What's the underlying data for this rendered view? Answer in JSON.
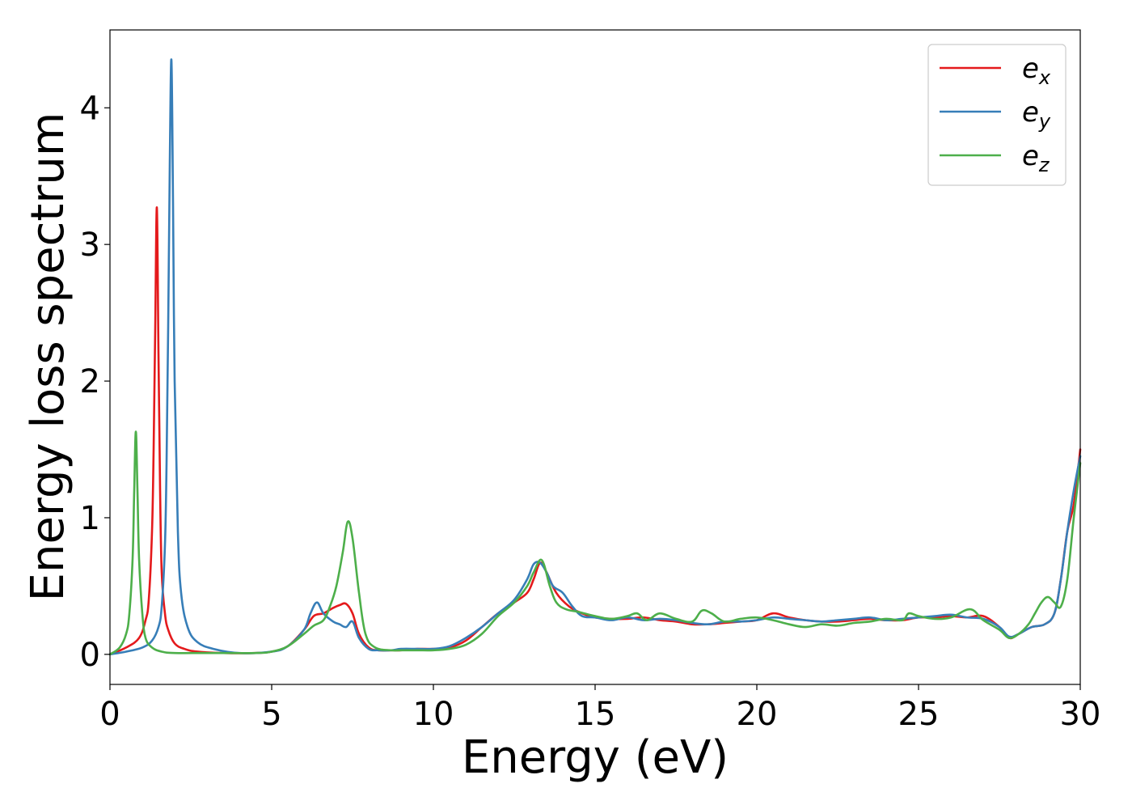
{
  "chart_data": {
    "type": "line",
    "xlabel": "Energy (eV)",
    "ylabel": "Energy loss spectrum",
    "xlim": [
      0,
      30
    ],
    "ylim": [
      -0.22,
      4.57
    ],
    "xticks": [
      0,
      5,
      10,
      15,
      20,
      25,
      30
    ],
    "yticks": [
      0,
      1,
      2,
      3,
      4
    ],
    "grid": false,
    "legend": "top-right",
    "series": [
      {
        "name": "e_x",
        "label_base": "e",
        "label_sub": "x",
        "color": "#e41a1c",
        "x": [
          0,
          0.5,
          0.9,
          1.1,
          1.2,
          1.3,
          1.35,
          1.4,
          1.45,
          1.5,
          1.55,
          1.6,
          1.7,
          1.8,
          2.0,
          2.3,
          2.7,
          3.5,
          4.5,
          5.0,
          5.5,
          6.0,
          6.3,
          6.6,
          6.9,
          7.1,
          7.3,
          7.5,
          7.7,
          8.0,
          8.3,
          8.7,
          9.0,
          9.5,
          10.0,
          10.5,
          11.0,
          11.5,
          12.0,
          12.5,
          12.9,
          13.1,
          13.3,
          13.5,
          13.8,
          14.2,
          14.6,
          15.0,
          15.5,
          16.0,
          16.5,
          17.0,
          17.5,
          18.0,
          18.5,
          19.0,
          19.5,
          20.0,
          20.5,
          21.0,
          21.5,
          22.0,
          22.5,
          23.0,
          23.5,
          24.0,
          24.5,
          25.0,
          25.5,
          26.0,
          26.5,
          27.0,
          27.5,
          27.8,
          28.1,
          28.5,
          28.9,
          29.2,
          29.4,
          29.6,
          29.8,
          30.0
        ],
        "values": [
          0.0,
          0.05,
          0.12,
          0.25,
          0.4,
          0.9,
          1.5,
          2.4,
          3.27,
          2.2,
          1.2,
          0.6,
          0.3,
          0.18,
          0.08,
          0.04,
          0.02,
          0.01,
          0.01,
          0.02,
          0.06,
          0.18,
          0.28,
          0.3,
          0.34,
          0.36,
          0.37,
          0.3,
          0.15,
          0.05,
          0.03,
          0.03,
          0.03,
          0.04,
          0.04,
          0.05,
          0.1,
          0.2,
          0.3,
          0.38,
          0.45,
          0.55,
          0.67,
          0.6,
          0.45,
          0.35,
          0.3,
          0.27,
          0.26,
          0.26,
          0.27,
          0.25,
          0.24,
          0.22,
          0.22,
          0.23,
          0.24,
          0.25,
          0.3,
          0.27,
          0.25,
          0.24,
          0.24,
          0.25,
          0.26,
          0.25,
          0.25,
          0.27,
          0.27,
          0.28,
          0.27,
          0.28,
          0.2,
          0.12,
          0.15,
          0.2,
          0.22,
          0.3,
          0.55,
          0.9,
          1.1,
          1.5
        ]
      },
      {
        "name": "e_y",
        "label_base": "e",
        "label_sub": "y",
        "color": "#377eb8",
        "x": [
          0,
          0.5,
          1.0,
          1.3,
          1.5,
          1.6,
          1.7,
          1.75,
          1.8,
          1.85,
          1.9,
          1.95,
          2.0,
          2.1,
          2.2,
          2.4,
          2.7,
          3.2,
          4.0,
          5.0,
          5.5,
          6.0,
          6.2,
          6.4,
          6.6,
          6.9,
          7.1,
          7.3,
          7.5,
          7.7,
          8.0,
          8.3,
          8.7,
          9.0,
          9.5,
          10.0,
          10.5,
          11.0,
          11.5,
          12.0,
          12.5,
          12.9,
          13.1,
          13.3,
          13.5,
          13.7,
          14.0,
          14.3,
          14.6,
          15.0,
          15.5,
          16.0,
          16.5,
          17.0,
          17.5,
          18.0,
          18.5,
          19.0,
          19.5,
          20.0,
          20.5,
          21.0,
          21.5,
          22.0,
          22.5,
          23.0,
          23.5,
          24.0,
          24.5,
          25.0,
          25.5,
          26.0,
          26.5,
          27.0,
          27.5,
          27.8,
          28.1,
          28.5,
          28.9,
          29.2,
          29.4,
          29.6,
          29.8,
          30.0
        ],
        "values": [
          0.0,
          0.02,
          0.05,
          0.1,
          0.2,
          0.35,
          0.8,
          1.4,
          2.4,
          3.6,
          4.35,
          3.3,
          2.0,
          0.9,
          0.45,
          0.2,
          0.09,
          0.04,
          0.01,
          0.02,
          0.06,
          0.18,
          0.3,
          0.38,
          0.3,
          0.24,
          0.22,
          0.2,
          0.24,
          0.12,
          0.04,
          0.03,
          0.03,
          0.04,
          0.04,
          0.04,
          0.06,
          0.12,
          0.2,
          0.3,
          0.4,
          0.55,
          0.66,
          0.67,
          0.6,
          0.5,
          0.45,
          0.35,
          0.28,
          0.27,
          0.25,
          0.27,
          0.25,
          0.26,
          0.25,
          0.23,
          0.22,
          0.24,
          0.24,
          0.25,
          0.27,
          0.26,
          0.25,
          0.24,
          0.25,
          0.26,
          0.27,
          0.25,
          0.26,
          0.27,
          0.28,
          0.29,
          0.27,
          0.26,
          0.2,
          0.13,
          0.15,
          0.2,
          0.22,
          0.3,
          0.55,
          0.9,
          1.2,
          1.45
        ]
      },
      {
        "name": "e_z",
        "label_base": "e",
        "label_sub": "z",
        "color": "#4daf4a",
        "x": [
          0,
          0.3,
          0.5,
          0.6,
          0.7,
          0.75,
          0.8,
          0.85,
          0.9,
          1.0,
          1.1,
          1.3,
          1.6,
          2.0,
          3.0,
          4.5,
          5.0,
          5.5,
          6.0,
          6.3,
          6.6,
          6.8,
          7.0,
          7.2,
          7.35,
          7.5,
          7.7,
          7.9,
          8.2,
          8.7,
          9.0,
          9.5,
          10.0,
          10.5,
          11.0,
          11.5,
          12.0,
          12.5,
          12.9,
          13.1,
          13.35,
          13.6,
          13.8,
          14.1,
          14.5,
          15.0,
          15.5,
          16.0,
          16.3,
          16.6,
          17.0,
          17.5,
          18.0,
          18.3,
          18.6,
          19.0,
          19.5,
          20.0,
          20.5,
          21.0,
          21.5,
          22.0,
          22.5,
          23.0,
          23.5,
          24.0,
          24.5,
          24.7,
          25.0,
          25.5,
          26.0,
          26.6,
          27.0,
          27.5,
          27.8,
          28.1,
          28.4,
          28.6,
          28.8,
          29.0,
          29.2,
          29.4,
          29.6,
          29.8,
          30.0
        ],
        "values": [
          0.0,
          0.05,
          0.15,
          0.3,
          0.7,
          1.2,
          1.63,
          1.2,
          0.7,
          0.3,
          0.12,
          0.05,
          0.02,
          0.01,
          0.01,
          0.01,
          0.02,
          0.06,
          0.15,
          0.21,
          0.25,
          0.35,
          0.5,
          0.75,
          0.97,
          0.85,
          0.45,
          0.15,
          0.05,
          0.03,
          0.03,
          0.03,
          0.03,
          0.04,
          0.07,
          0.15,
          0.28,
          0.38,
          0.5,
          0.6,
          0.69,
          0.5,
          0.38,
          0.33,
          0.31,
          0.28,
          0.26,
          0.28,
          0.3,
          0.25,
          0.3,
          0.26,
          0.24,
          0.32,
          0.3,
          0.24,
          0.26,
          0.27,
          0.25,
          0.22,
          0.2,
          0.22,
          0.21,
          0.23,
          0.24,
          0.26,
          0.25,
          0.3,
          0.28,
          0.26,
          0.27,
          0.33,
          0.25,
          0.18,
          0.12,
          0.15,
          0.22,
          0.3,
          0.38,
          0.42,
          0.38,
          0.35,
          0.55,
          1.0,
          1.4
        ]
      }
    ]
  }
}
